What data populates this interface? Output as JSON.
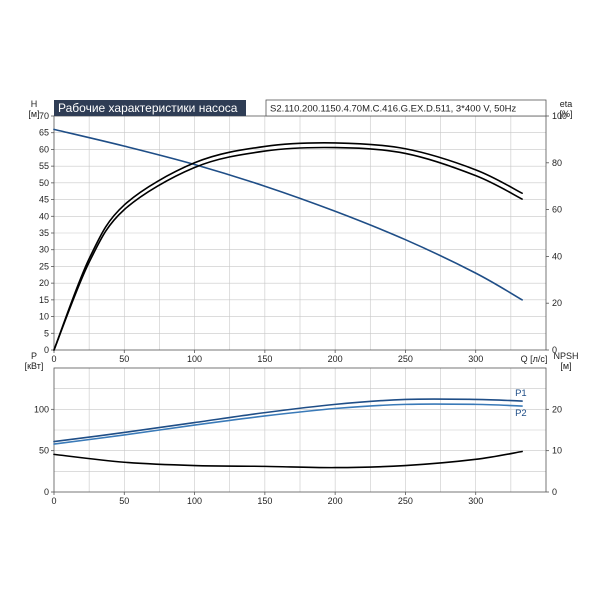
{
  "chart_data": [
    {
      "id": "top",
      "type": "line",
      "title": "Рабочие характеристики насоса",
      "model": "S2.110.200.1150.4.70M.C.416.G.EX.D.511, 3*400 V, 50Hz",
      "xlabel": "Q [л/с]",
      "xlim": [
        0,
        350
      ],
      "x_ticks": [
        0,
        50,
        100,
        150,
        200,
        250,
        300
      ],
      "ylabel_left": [
        "H",
        "[м]"
      ],
      "ylim_left": [
        0,
        70
      ],
      "y_ticks_left": [
        0,
        5,
        10,
        15,
        20,
        25,
        30,
        35,
        40,
        45,
        50,
        55,
        60,
        65,
        70
      ],
      "ylabel_right": [
        "eta",
        "[%]"
      ],
      "ylim_right": [
        0,
        100
      ],
      "y_ticks_right": [
        0,
        20,
        40,
        60,
        80,
        100
      ],
      "grid": true,
      "series": [
        {
          "axis": "left",
          "color": "#1f4e87",
          "x": [
            0,
            50,
            100,
            150,
            200,
            250,
            300,
            333
          ],
          "y": [
            66,
            61,
            55.5,
            49,
            41.5,
            33,
            23,
            15
          ]
        },
        {
          "axis": "right",
          "color": "#000000",
          "x": [
            0,
            25,
            50,
            100,
            150,
            200,
            250,
            300,
            333
          ],
          "y": [
            0,
            39,
            62,
            80,
            87,
            88.5,
            86,
            77,
            67
          ]
        },
        {
          "axis": "right",
          "color": "#000000",
          "x": [
            0,
            25,
            50,
            100,
            150,
            200,
            250,
            300,
            333
          ],
          "y": [
            0,
            37.5,
            60,
            78,
            85,
            86.5,
            84,
            74.5,
            64.5
          ]
        }
      ]
    },
    {
      "id": "bottom",
      "type": "line",
      "xlim": [
        0,
        350
      ],
      "x_ticks": [
        0,
        50,
        100,
        150,
        200,
        250,
        300
      ],
      "ylabel_left": [
        "P",
        "[кВт]"
      ],
      "ylim_left": [
        0,
        150
      ],
      "y_ticks_left": [
        0,
        50,
        100
      ],
      "ylabel_right": [
        "NPSH",
        "[м]"
      ],
      "ylim_right": [
        0,
        30
      ],
      "y_ticks_right": [
        0,
        10,
        20
      ],
      "grid": true,
      "series": [
        {
          "name": "P1",
          "axis": "left",
          "color": "#1f4e87",
          "x": [
            0,
            50,
            100,
            150,
            200,
            250,
            300,
            333
          ],
          "y": [
            61,
            72,
            84,
            96,
            106,
            112,
            112,
            110
          ]
        },
        {
          "name": "P2",
          "axis": "left",
          "color": "#3a7ab8",
          "x": [
            0,
            50,
            100,
            150,
            200,
            250,
            300,
            333
          ],
          "y": [
            58,
            69,
            81,
            92,
            101,
            106,
            106,
            104
          ]
        },
        {
          "axis": "right",
          "color": "#000000",
          "x": [
            0,
            50,
            100,
            150,
            200,
            250,
            300,
            333
          ],
          "y": [
            9.1,
            7.2,
            6.4,
            6.2,
            5.9,
            6.4,
            7.9,
            9.8
          ]
        }
      ]
    }
  ]
}
